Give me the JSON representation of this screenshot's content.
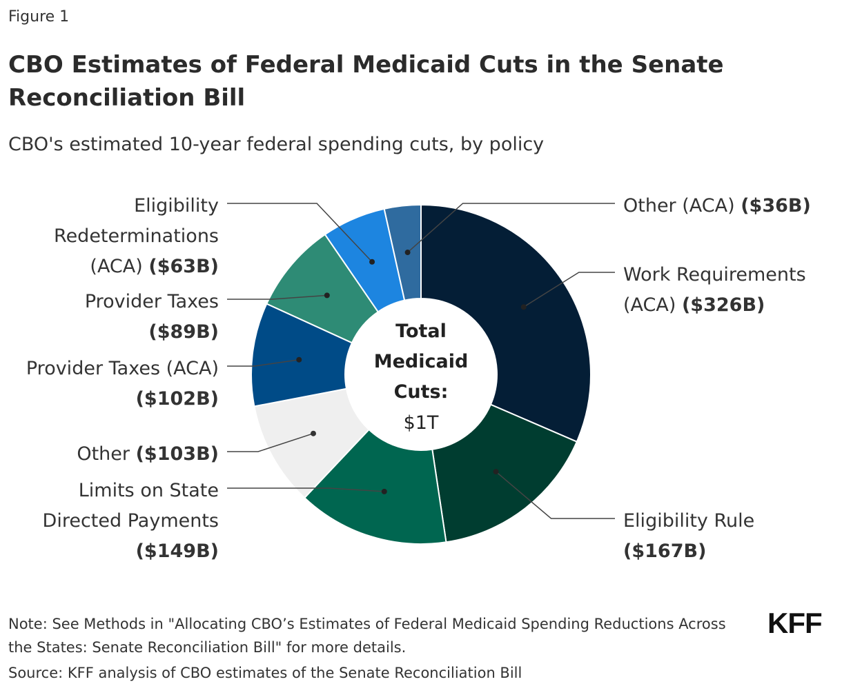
{
  "figure_label": "Figure 1",
  "title": "CBO Estimates of Federal Medicaid Cuts in the Senate Reconciliation Bill",
  "subtitle": "CBO's estimated 10-year federal spending cuts, by policy",
  "note": "Note: See Methods in \"Allocating CBO’s Estimates of Federal Medicaid Spending Reductions Across the States: Senate Reconciliation Bill\" for more details.",
  "source": "Source: KFF analysis of CBO estimates of the Senate Reconciliation Bill",
  "logo": "KFF",
  "chart_data": {
    "type": "pie",
    "variant": "donut",
    "units": "billions of dollars",
    "center": {
      "lines": [
        "Total",
        "Medicaid",
        "Cuts:"
      ],
      "value": "$1T"
    },
    "slices": [
      {
        "name": "Work Requirements (ACA)",
        "value": 326,
        "value_label": "($326B)",
        "color": "#041E36",
        "label_lines": [
          {
            "text": "Work Requirements",
            "value": ""
          },
          {
            "text": "(ACA) ",
            "value": "($326B)"
          }
        ]
      },
      {
        "name": "Eligibility Rule",
        "value": 167,
        "value_label": "($167B)",
        "color": "#003D30",
        "label_lines": [
          {
            "text": "Eligibility Rule",
            "value": ""
          },
          {
            "text": "",
            "value": "($167B)"
          }
        ]
      },
      {
        "name": "Limits on State Directed Payments",
        "value": 149,
        "value_label": "($149B)",
        "color": "#006650",
        "label_lines": [
          {
            "text": "Limits on State",
            "value": ""
          },
          {
            "text": "Directed Payments",
            "value": ""
          },
          {
            "text": "",
            "value": "($149B)"
          }
        ]
      },
      {
        "name": "Other",
        "value": 103,
        "value_label": "($103B)",
        "color": "#EFEFEF",
        "label_lines": [
          {
            "text": "Other ",
            "value": "($103B)"
          }
        ]
      },
      {
        "name": "Provider Taxes (ACA)",
        "value": 102,
        "value_label": "($102B)",
        "color": "#004B87",
        "label_lines": [
          {
            "text": "Provider Taxes (ACA)",
            "value": ""
          },
          {
            "text": "",
            "value": "($102B)"
          }
        ]
      },
      {
        "name": "Provider Taxes",
        "value": 89,
        "value_label": "($89B)",
        "color": "#2E8B75",
        "label_lines": [
          {
            "text": "Provider Taxes",
            "value": ""
          },
          {
            "text": "",
            "value": "($89B)"
          }
        ]
      },
      {
        "name": "Eligibility Redeterminations (ACA)",
        "value": 63,
        "value_label": "($63B)",
        "color": "#1D85E0",
        "label_lines": [
          {
            "text": "Eligibility",
            "value": ""
          },
          {
            "text": "Redeterminations",
            "value": ""
          },
          {
            "text": "(ACA) ",
            "value": "($63B)"
          }
        ]
      },
      {
        "name": "Other (ACA)",
        "value": 36,
        "value_label": "($36B)",
        "color": "#2F6B9F",
        "label_lines": [
          {
            "text": "Other (ACA) ",
            "value": "($36B)"
          }
        ]
      }
    ]
  }
}
